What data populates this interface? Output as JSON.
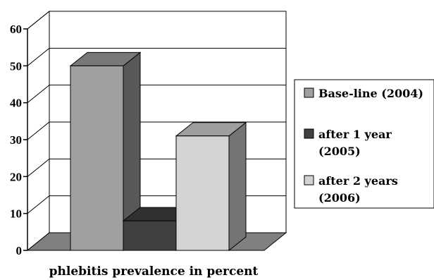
{
  "chart_data": {
    "type": "bar",
    "style": "3d-clustered",
    "title": "",
    "xlabel": "phlebitis prevalence in percent",
    "ylabel": "",
    "ylim": [
      0,
      60
    ],
    "yticks": [
      "0",
      "10",
      "20",
      "30",
      "40",
      "50",
      "60"
    ],
    "grid": true,
    "legend_position": "right",
    "series": [
      {
        "name": "Base-line (2004)",
        "legend_lines": [
          "Base-line (2004)"
        ],
        "values": [
          50
        ],
        "color": "#a0a0a0"
      },
      {
        "name": "after 1 year (2005)",
        "legend_lines": [
          "after 1 year",
          "(2005)"
        ],
        "values": [
          8
        ],
        "color": "#404040"
      },
      {
        "name": "after 2 years (2006)",
        "legend_lines": [
          "after 2 years",
          "(2006)"
        ],
        "values": [
          31
        ],
        "color": "#d3d3d3"
      }
    ]
  }
}
